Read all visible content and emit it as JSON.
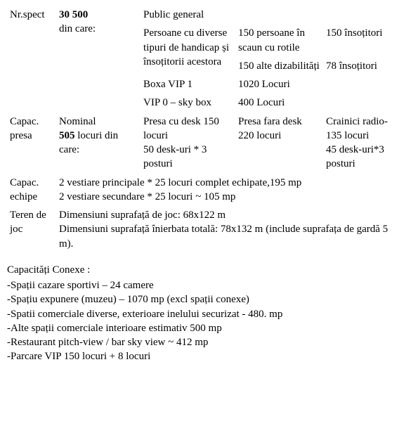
{
  "spect": {
    "label": "Nr.spect",
    "total": "30 500",
    "din_care": "din care:",
    "rows": [
      {
        "c3": "Public general",
        "c4": "",
        "c5": ""
      },
      {
        "c3": "Persoane cu diverse tipuri de handicap și însoțitorii acestora",
        "c4": "150 persoane în scaun cu rotile",
        "c5": "150 însoțitori"
      },
      {
        "c3": "",
        "c4": "150 alte dizabilități",
        "c5": " 78 însoțitori"
      },
      {
        "c3": "Boxa VIP 1",
        "c4": "1020 Locuri",
        "c5": ""
      },
      {
        "c3": "VIP 0 – sky box",
        "c4": "400 Locuri",
        "c5": ""
      }
    ]
  },
  "presa": {
    "label1": "Capac.",
    "label2": "presa",
    "c2a": "Nominal",
    "c2b": "505",
    "c2b_suffix": " locuri din care:",
    "c3": "Presa cu desk 150 locuri\n50 desk-uri * 3 posturi",
    "c4": "Presa fara desk 220 locuri",
    "c5": "Crainici radio-135 locuri\n45 desk-uri*3 posturi"
  },
  "echipe": {
    "label1": "Capac.",
    "label2": "echipe",
    "text": "2 vestiare principale  * 25 locuri complet echipate,195 mp\n2 vestiare secundare * 25 locuri ~ 105 mp"
  },
  "teren": {
    "label1": "Teren de",
    "label2": "joc",
    "text": "Dimensiuni suprafață de joc: 68x122 m\nDimensiuni suprafață înierbata totală: 78x132 m (include suprafața de gardă 5 m)."
  },
  "conexe": {
    "title": "Capacități Conexe :",
    "items": [
      "-Spații cazare sportivi – 24 camere",
      "-Spațiu expunere (muzeu) – 1070 mp (excl spații conexe)",
      "-Spatii comerciale diverse, exterioare inelului securizat - 480. mp",
      "-Alte spații comerciale interioare estimativ 500 mp",
      "-Restaurant  pitch-view / bar sky view ~ 412 mp",
      "-Parcare VIP 150 locuri + 8 locuri"
    ]
  }
}
